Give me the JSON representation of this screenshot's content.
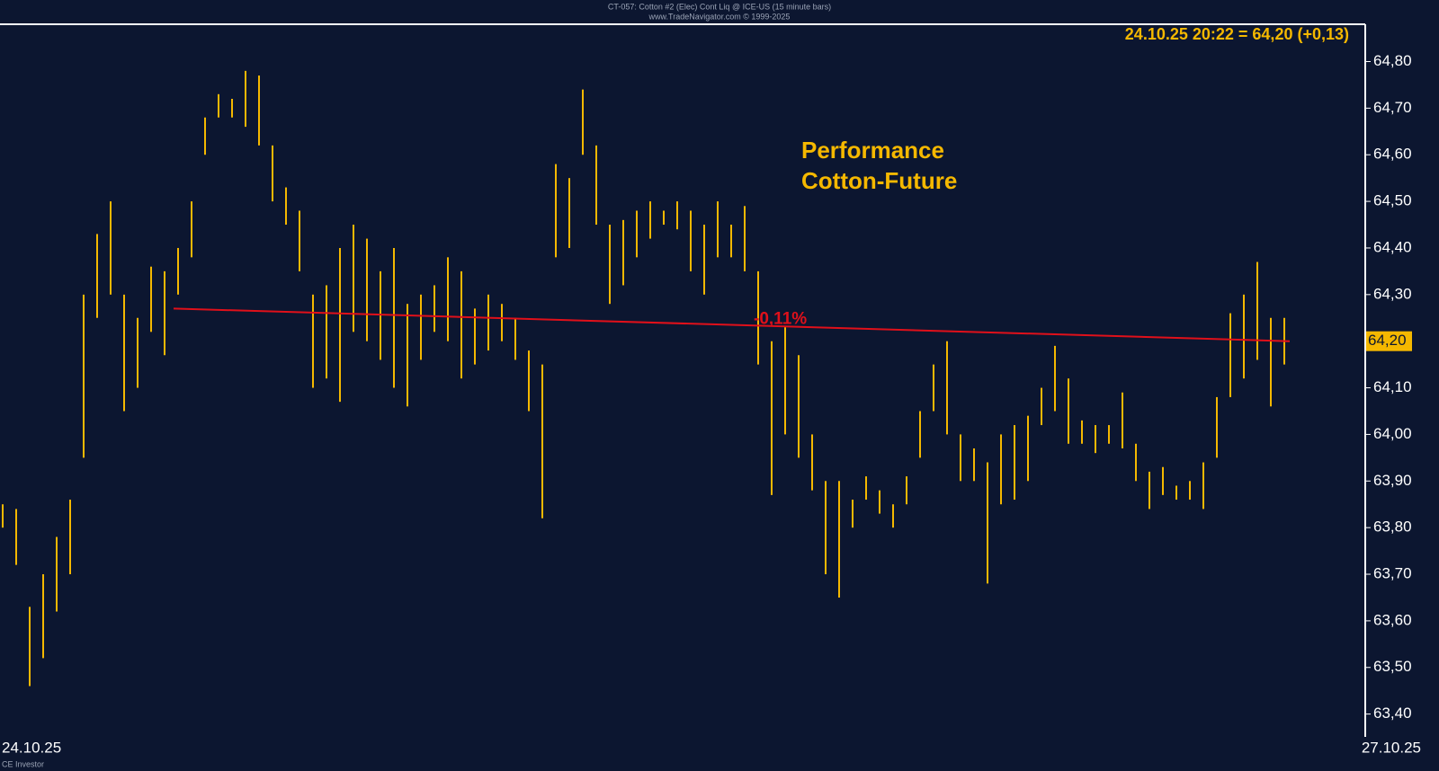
{
  "chart_data": {
    "type": "ohlc",
    "title": "CT-057: Cotton #2 (Elec) Cont Liq @ ICE-US (15 minute bars)",
    "subtitle": "www.TradeNavigator.com © 1999-2025",
    "legend_text": "24.10.25 20:22 = 64,20 (+0,13)",
    "annotation_lines": [
      "Performance",
      "Cotton-Future"
    ],
    "footer_note": "CE Investor",
    "background": "#0c1630",
    "series": [
      {
        "color": "#f5b800",
        "high": [
          63.85,
          63.84,
          63.63,
          63.7,
          63.78,
          63.86,
          64.3,
          64.43,
          64.5,
          64.3,
          64.25,
          64.36,
          64.35,
          64.4,
          64.5,
          64.68,
          64.73,
          64.72,
          64.78,
          64.77,
          64.62,
          64.53,
          64.48,
          64.3,
          64.32,
          64.4,
          64.45,
          64.42,
          64.35,
          64.4,
          64.28,
          64.3,
          64.32,
          64.38,
          64.35,
          64.27,
          64.3,
          64.28,
          64.25,
          64.18,
          64.15,
          64.58,
          64.55,
          64.74,
          64.62,
          64.45,
          64.46,
          64.48,
          64.5,
          64.48,
          64.5,
          64.48,
          64.45,
          64.5,
          64.45,
          64.49,
          64.35,
          64.2,
          64.23,
          64.17,
          64.0,
          63.9,
          63.9,
          63.86,
          63.91,
          63.88,
          63.85,
          63.91,
          64.05,
          64.15,
          64.2,
          64.0,
          63.97,
          63.94,
          64.0,
          64.02,
          64.04,
          64.1,
          64.19,
          64.12,
          64.03,
          64.02,
          64.02,
          64.09,
          63.98,
          63.92,
          63.93,
          63.89,
          63.9,
          63.94,
          64.08,
          64.26,
          64.3,
          64.37,
          64.25,
          64.25
        ],
        "low": [
          63.8,
          63.72,
          63.46,
          63.52,
          63.62,
          63.7,
          63.95,
          64.25,
          64.3,
          64.05,
          64.1,
          64.22,
          64.17,
          64.3,
          64.38,
          64.6,
          64.68,
          64.68,
          64.66,
          64.62,
          64.5,
          64.45,
          64.35,
          64.1,
          64.12,
          64.07,
          64.22,
          64.2,
          64.16,
          64.1,
          64.06,
          64.16,
          64.22,
          64.2,
          64.12,
          64.15,
          64.18,
          64.2,
          64.16,
          64.05,
          63.82,
          64.38,
          64.4,
          64.6,
          64.45,
          64.28,
          64.32,
          64.38,
          64.42,
          64.45,
          64.44,
          64.35,
          64.3,
          64.38,
          64.38,
          64.35,
          64.15,
          63.87,
          64.0,
          63.95,
          63.88,
          63.7,
          63.65,
          63.8,
          63.86,
          63.83,
          63.8,
          63.85,
          63.95,
          64.05,
          64.0,
          63.9,
          63.9,
          63.68,
          63.85,
          63.86,
          63.9,
          64.02,
          64.05,
          63.98,
          63.98,
          63.96,
          63.98,
          63.97,
          63.9,
          63.84,
          63.87,
          63.86,
          63.86,
          63.84,
          63.95,
          64.08,
          64.12,
          64.16,
          64.06,
          64.15
        ]
      }
    ],
    "trend_line": {
      "label": "-0,11%",
      "start": 64.27,
      "end": 64.2,
      "color": "#e0101a"
    },
    "last_price": {
      "value": 64.2,
      "label": "64,20"
    },
    "x_labels": [
      "24.10.25",
      "27.10.25"
    ],
    "ylim": [
      63.38,
      64.88
    ],
    "yticks": [
      {
        "value": 63.4,
        "label": "63,40"
      },
      {
        "value": 63.5,
        "label": "63,50"
      },
      {
        "value": 63.6,
        "label": "63,60"
      },
      {
        "value": 63.7,
        "label": "63,70"
      },
      {
        "value": 63.8,
        "label": "63,80"
      },
      {
        "value": 63.9,
        "label": "63,90"
      },
      {
        "value": 64.0,
        "label": "64,00"
      },
      {
        "value": 64.1,
        "label": "64,10"
      },
      {
        "value": 64.2,
        "label": "64,20"
      },
      {
        "value": 64.3,
        "label": "64,30"
      },
      {
        "value": 64.4,
        "label": "64,40"
      },
      {
        "value": 64.5,
        "label": "64,50"
      },
      {
        "value": 64.6,
        "label": "64,60"
      },
      {
        "value": 64.7,
        "label": "64,70"
      },
      {
        "value": 64.8,
        "label": "64,80"
      }
    ]
  }
}
